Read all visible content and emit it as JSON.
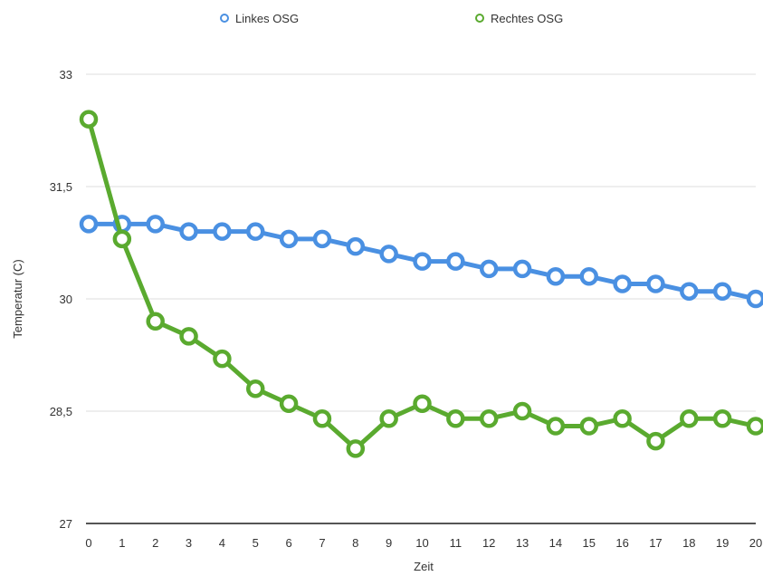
{
  "chart_data": {
    "type": "line",
    "title": "",
    "xlabel": "Zeit",
    "ylabel": "Temperatur (C)",
    "x": [
      0,
      1,
      2,
      3,
      4,
      5,
      6,
      7,
      8,
      9,
      10,
      11,
      12,
      13,
      14,
      15,
      16,
      17,
      18,
      19,
      20
    ],
    "ylim": [
      27,
      33
    ],
    "yticks": [
      27,
      28.5,
      30,
      31.5,
      33
    ],
    "ytick_labels": [
      "27",
      "28,5",
      "30",
      "31,5",
      "33"
    ],
    "grid": true,
    "legend_position": "top",
    "series": [
      {
        "name": "Linkes OSG",
        "color": "#4a90e2",
        "values": [
          31.0,
          31.0,
          31.0,
          30.9,
          30.9,
          30.9,
          30.8,
          30.8,
          30.7,
          30.6,
          30.5,
          30.5,
          30.4,
          30.4,
          30.3,
          30.3,
          30.2,
          30.2,
          30.1,
          30.1,
          30.0
        ]
      },
      {
        "name": "Rechtes OSG",
        "color": "#5aaa2f",
        "values": [
          32.4,
          30.8,
          29.7,
          29.5,
          29.2,
          28.8,
          28.6,
          28.4,
          28.0,
          28.4,
          28.6,
          28.4,
          28.4,
          28.5,
          28.3,
          28.3,
          28.4,
          28.1,
          28.4,
          28.4,
          28.3
        ]
      }
    ]
  }
}
